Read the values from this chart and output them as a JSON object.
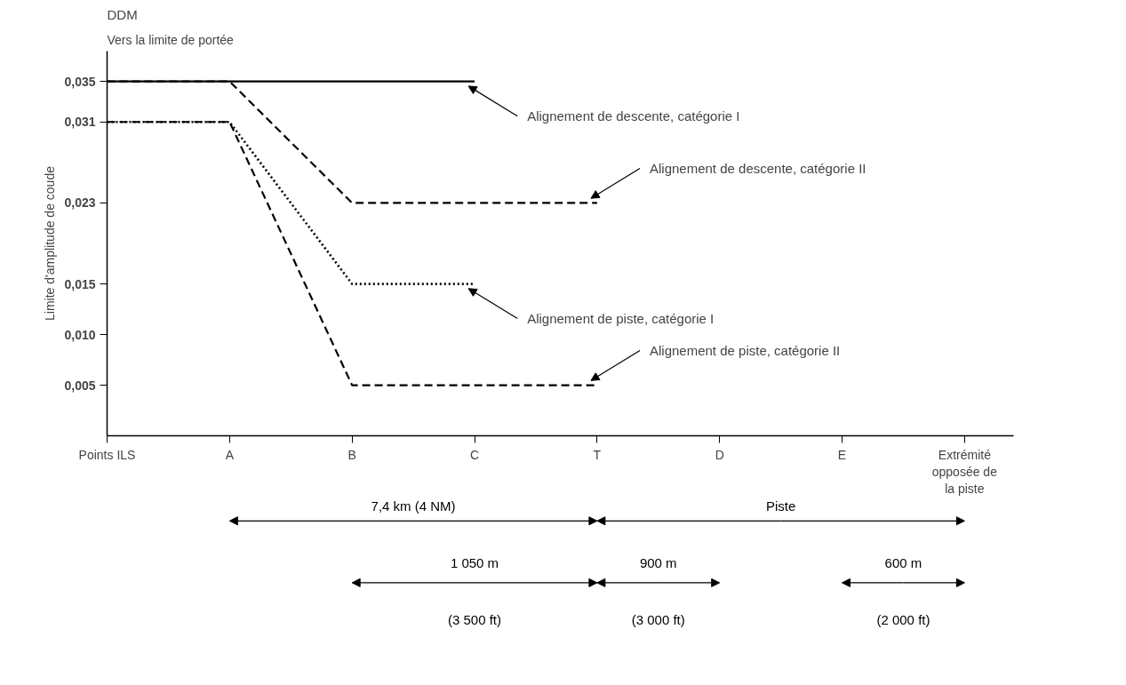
{
  "chart_data": {
    "type": "line",
    "title": "DDM",
    "subtitle": "Vers la limite de portée",
    "ylabel": "Limite d'amplitude de coude",
    "categories": [
      "Points ILS",
      "A",
      "B",
      "C",
      "T",
      "D",
      "E",
      "Extrémité opposée de la piste"
    ],
    "series": [
      {
        "name": "Alignement de descente, catégorie I",
        "color": "#000000",
        "line_style": "solid",
        "values": [
          0.035,
          0.035,
          0.035,
          0.035,
          null,
          null,
          null,
          null
        ]
      },
      {
        "name": "Alignement de descente, catégorie II",
        "color": "#000000",
        "line_style": "dashed",
        "values": [
          0.035,
          0.035,
          0.023,
          0.023,
          0.023,
          null,
          null,
          null
        ]
      },
      {
        "name": "Alignement de piste, catégorie I",
        "color": "#000000",
        "line_style": "dotted",
        "values": [
          0.031,
          0.031,
          0.015,
          0.015,
          null,
          null,
          null,
          null
        ]
      },
      {
        "name": "Alignement de piste, catégorie II",
        "color": "#000000",
        "line_style": "dashed",
        "values": [
          0.031,
          0.031,
          0.005,
          0.005,
          0.005,
          null,
          null,
          null
        ]
      }
    ],
    "ylim": [
      0,
      0.038
    ],
    "yticks": [
      {
        "value": 0.005,
        "label": "0,005"
      },
      {
        "value": 0.01,
        "label": "0,010"
      },
      {
        "value": 0.015,
        "label": "0,015"
      },
      {
        "value": 0.023,
        "label": "0,023"
      },
      {
        "value": 0.031,
        "label": "0,031"
      },
      {
        "value": 0.035,
        "label": "0,035"
      }
    ],
    "grid": false,
    "annotations": [
      "7,4 km (4 NM)",
      "Piste",
      "1 050 m",
      "(3 500 ft)",
      "900 m",
      "(3 000 ft)",
      "600 m",
      "(2 000 ft)"
    ]
  }
}
